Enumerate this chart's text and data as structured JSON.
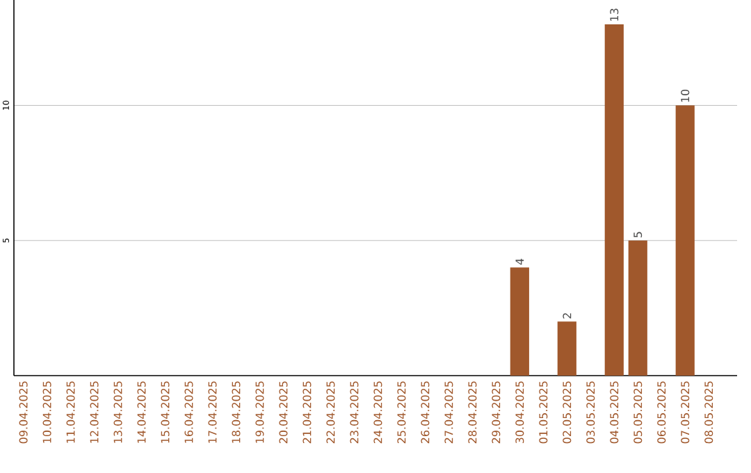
{
  "chart_data": {
    "type": "bar",
    "categories": [
      "09.04.2025",
      "10.04.2025",
      "11.04.2025",
      "12.04.2025",
      "13.04.2025",
      "14.04.2025",
      "15.04.2025",
      "16.04.2025",
      "17.04.2025",
      "18.04.2025",
      "19.04.2025",
      "20.04.2025",
      "21.04.2025",
      "22.04.2025",
      "23.04.2025",
      "24.04.2025",
      "25.04.2025",
      "26.04.2025",
      "27.04.2025",
      "28.04.2025",
      "29.04.2025",
      "30.04.2025",
      "01.05.2025",
      "02.05.2025",
      "03.05.2025",
      "04.05.2025",
      "05.05.2025",
      "06.05.2025",
      "07.05.2025",
      "08.05.2025"
    ],
    "values": [
      0,
      0,
      0,
      0,
      0,
      0,
      0,
      0,
      0,
      0,
      0,
      0,
      0,
      0,
      0,
      0,
      0,
      0,
      0,
      0,
      0,
      4,
      0,
      2,
      0,
      13,
      5,
      0,
      10,
      0
    ],
    "value_labels": [
      null,
      null,
      null,
      null,
      null,
      null,
      null,
      null,
      null,
      null,
      null,
      null,
      null,
      null,
      null,
      null,
      null,
      null,
      null,
      null,
      null,
      "4",
      null,
      "2",
      null,
      "13",
      "5",
      null,
      "10",
      null
    ],
    "color": "#a0582c",
    "ylim": [
      0,
      13.9
    ],
    "yticks": [
      5,
      10
    ],
    "grid": "y"
  }
}
